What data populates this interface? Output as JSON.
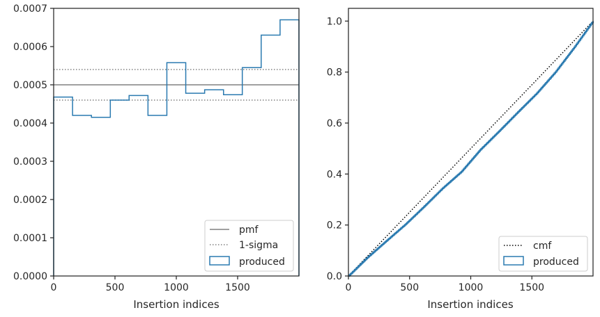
{
  "chart_data": [
    {
      "type": "line",
      "panel": "left",
      "xlabel": "Insertion indices",
      "ylabel": "",
      "xlim": [
        0,
        2000
      ],
      "ylim": [
        0,
        0.0007
      ],
      "xticks": [
        0,
        500,
        1000,
        1500
      ],
      "xtick_labels": [
        "0",
        "500",
        "1000",
        "1500"
      ],
      "yticks": [
        0,
        0.0001,
        0.0002,
        0.0003,
        0.0004,
        0.0005,
        0.0006,
        0.0007
      ],
      "ytick_labels": [
        "0.0000",
        "0.0001",
        "0.0002",
        "0.0003",
        "0.0004",
        "0.0005",
        "0.0006",
        "0.0007"
      ],
      "grid": false,
      "legend": {
        "placement": "lower-right",
        "entries": [
          "pmf",
          "1-sigma",
          "produced"
        ]
      },
      "colors": {
        "pmf": "#808080",
        "sigma": "#808080",
        "produced": "#2a7ab0"
      },
      "series": [
        {
          "name": "pmf",
          "kind": "hline",
          "y": 0.0005
        },
        {
          "name": "1-sigma",
          "kind": "hlines-dotted",
          "y": [
            0.00046,
            0.00054
          ]
        },
        {
          "name": "produced",
          "kind": "step-histogram",
          "bin_edges": [
            0,
            154,
            308,
            462,
            615,
            769,
            923,
            1077,
            1231,
            1385,
            1538,
            1692,
            1846,
            2000
          ],
          "values": [
            0.000468,
            0.00042,
            0.000415,
            0.00046,
            0.000472,
            0.00042,
            0.000558,
            0.000478,
            0.000487,
            0.000474,
            0.000545,
            0.00063,
            0.00067
          ]
        }
      ]
    },
    {
      "type": "line",
      "panel": "right",
      "xlabel": "Insertion indices",
      "ylabel": "",
      "xlim": [
        0,
        2000
      ],
      "ylim": [
        0,
        1.05
      ],
      "xticks": [
        0,
        500,
        1000,
        1500
      ],
      "xtick_labels": [
        "0",
        "500",
        "1000",
        "1500"
      ],
      "yticks": [
        0,
        0.2,
        0.4,
        0.6,
        0.8,
        1.0
      ],
      "ytick_labels": [
        "0.0",
        "0.2",
        "0.4",
        "0.6",
        "0.8",
        "1.0"
      ],
      "grid": false,
      "legend": {
        "placement": "lower-right",
        "entries": [
          "cmf",
          "produced"
        ]
      },
      "colors": {
        "cmf": "#000000",
        "produced": "#2a7ab0"
      },
      "series": [
        {
          "name": "cmf",
          "kind": "line-dotted",
          "x": [
            0,
            2000
          ],
          "y": [
            0,
            1.0
          ]
        },
        {
          "name": "produced",
          "kind": "cumulative-step",
          "x": [
            0,
            154,
            308,
            462,
            615,
            769,
            923,
            1077,
            1231,
            1385,
            1538,
            1692,
            1846,
            2000
          ],
          "y": [
            0,
            0.072,
            0.137,
            0.201,
            0.271,
            0.344,
            0.409,
            0.495,
            0.568,
            0.643,
            0.716,
            0.8,
            0.897,
            1.0
          ]
        }
      ]
    }
  ]
}
